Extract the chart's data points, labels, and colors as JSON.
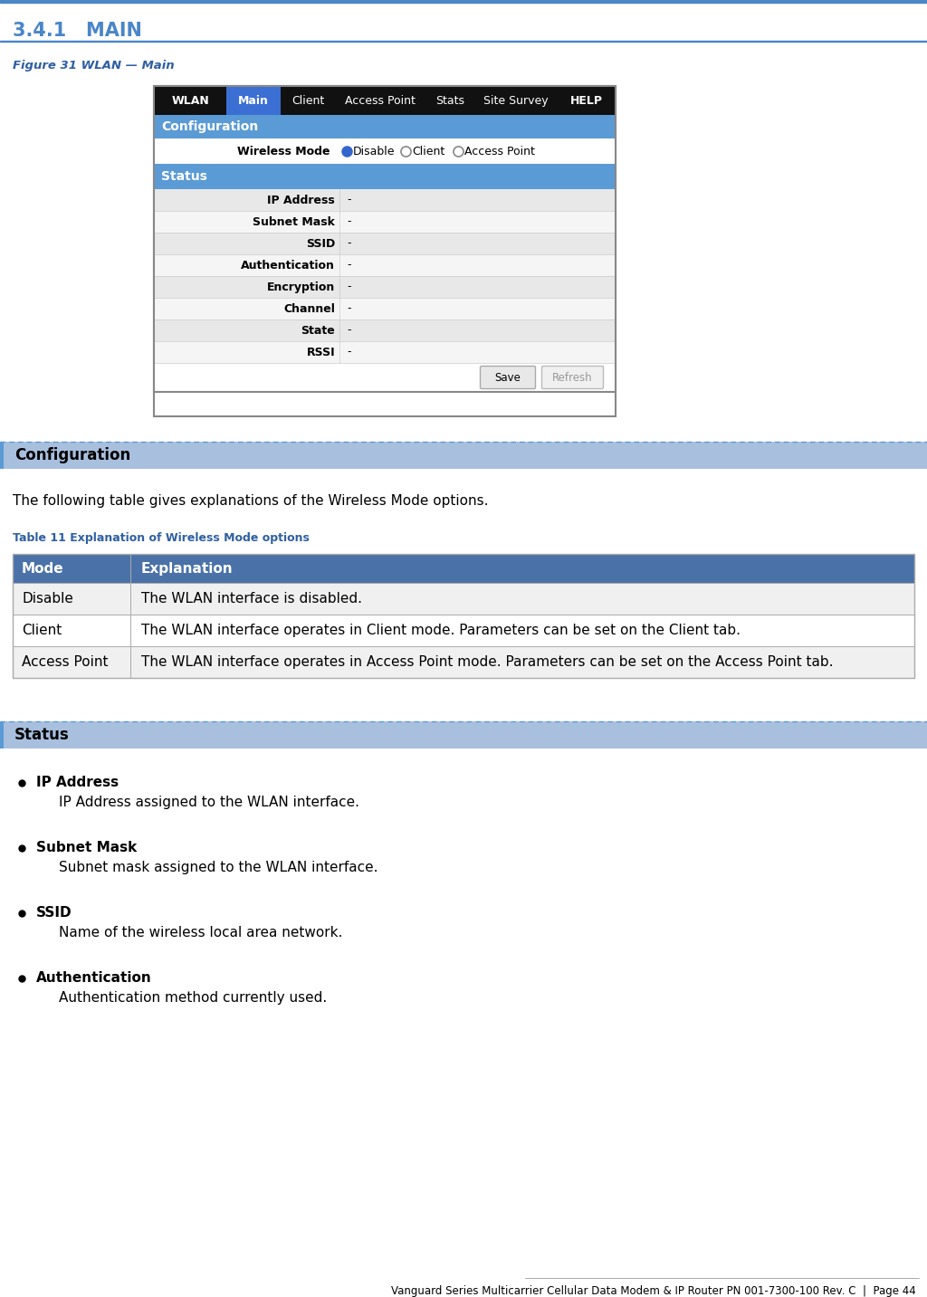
{
  "page_title": "3.4.1   MAIN",
  "figure_caption": "Figure 31 WLAN — Main",
  "top_border_color": "#4a86c8",
  "section_title_color": "#4a86c8",
  "section_bg_color": "#a8bfde",
  "heading_color": "#2e5fa3",
  "bg_color": "#ffffff",
  "wlan_ui": {
    "tab_wlan_bg": "#111111",
    "tab_main_bg": "#3366ff",
    "tab_other_bg": "#111111",
    "tab_text_color": "#ffffff",
    "config_header_bg": "#5b9bd5",
    "status_header_bg": "#5b9bd5",
    "row_odd_bg": "#e8e8e8",
    "row_even_bg": "#f5f5f5",
    "row_white_bg": "#ffffff",
    "status_rows": [
      {
        "label": "IP Address",
        "value": "-"
      },
      {
        "label": "Subnet Mask",
        "value": "-"
      },
      {
        "label": "SSID",
        "value": "-"
      },
      {
        "label": "Authentication",
        "value": "-"
      },
      {
        "label": "Encryption",
        "value": "-"
      },
      {
        "label": "Channel",
        "value": "-"
      },
      {
        "label": "State",
        "value": "-"
      },
      {
        "label": "RSSI",
        "value": "-"
      }
    ]
  },
  "config_section": {
    "header": "Configuration",
    "body_text": "The following table gives explanations of the Wireless Mode options.",
    "table_caption": "Table 11 Explanation of Wireless Mode options",
    "table_header": [
      "Mode",
      "Explanation"
    ],
    "table_header_bg": "#4a72a8",
    "table_rows": [
      [
        "Disable",
        "The WLAN interface is disabled."
      ],
      [
        "Client",
        "The WLAN interface operates in Client mode. Parameters can be set on the Client tab."
      ],
      [
        "Access Point",
        "The WLAN interface operates in Access Point mode. Parameters can be set on the Access Point tab."
      ]
    ],
    "table_row_odd": "#f0f0f0",
    "table_row_even": "#ffffff",
    "table_border": "#aaaaaa"
  },
  "status_section": {
    "header": "Status",
    "bullets": [
      {
        "term": "IP Address",
        "desc": "IP Address assigned to the WLAN interface."
      },
      {
        "term": "Subnet Mask",
        "desc": "Subnet mask assigned to the WLAN interface."
      },
      {
        "term": "SSID",
        "desc": "Name of the wireless local area network."
      },
      {
        "term": "Authentication",
        "desc": "Authentication method currently used."
      }
    ]
  },
  "footer_text": "Vanguard Series Multicarrier Cellular Data Modem & IP Router PN 001-7300-100 Rev. C  |  Page 44"
}
